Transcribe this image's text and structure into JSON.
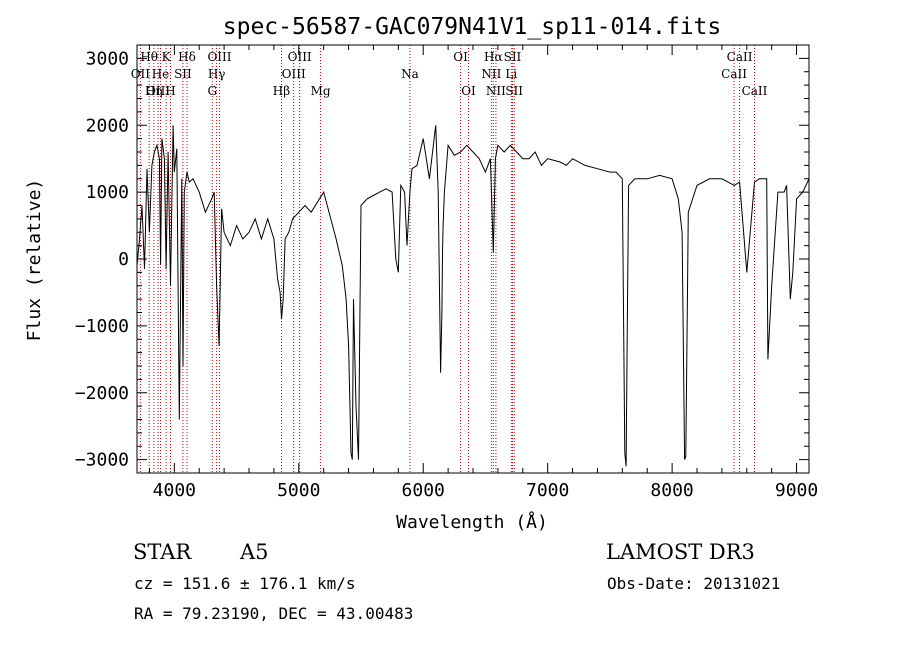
{
  "chart_data": {
    "type": "line",
    "title": "spec-56587-GAC079N41V1_sp11-014.fits",
    "xlabel": "Wavelength (Å)",
    "ylabel": "Flux (relative)",
    "xlim": [
      3700,
      9100
    ],
    "ylim": [
      -3200,
      3200
    ],
    "x_ticks": [
      4000,
      5000,
      6000,
      7000,
      8000,
      9000
    ],
    "y_ticks": [
      -3000,
      -2000,
      -1000,
      0,
      1000,
      2000,
      3000
    ],
    "x_tick_labels": [
      "4000",
      "5000",
      "6000",
      "7000",
      "8000",
      "9000"
    ],
    "y_tick_labels": [
      "−3000",
      "−2000",
      "−1000",
      "0",
      "1000",
      "2000",
      "3000"
    ],
    "line_color": "#000000",
    "marker_color": "#cc0000",
    "lines": [
      {
        "label": "Hθ",
        "wave": 3798,
        "row": 0
      },
      {
        "label": "OII",
        "wave": 3727,
        "row": 1
      },
      {
        "label": "OIII",
        "wave": 3869,
        "row": 2
      },
      {
        "label": "He",
        "wave": 3889,
        "row": 1
      },
      {
        "label": "Hη",
        "wave": 3835,
        "row": 2
      },
      {
        "label": "K",
        "wave": 3934,
        "row": 0
      },
      {
        "label": "SII",
        "wave": 4069,
        "row": 1
      },
      {
        "label": "H",
        "wave": 3969,
        "row": 2
      },
      {
        "label": "Hδ",
        "wave": 4102,
        "row": 0
      },
      {
        "label": "OIII",
        "wave": 4363,
        "row": 0
      },
      {
        "label": "Hγ",
        "wave": 4340,
        "row": 1
      },
      {
        "label": "G",
        "wave": 4305,
        "row": 2
      },
      {
        "label": "OIII",
        "wave": 5007,
        "row": 0
      },
      {
        "label": "OIII",
        "wave": 4959,
        "row": 1
      },
      {
        "label": "Hβ",
        "wave": 4861,
        "row": 2
      },
      {
        "label": "Mg",
        "wave": 5175,
        "row": 2
      },
      {
        "label": "Na",
        "wave": 5893,
        "row": 1
      },
      {
        "label": "OI",
        "wave": 6300,
        "row": 0
      },
      {
        "label": "OI",
        "wave": 6364,
        "row": 2
      },
      {
        "label": "Hα",
        "wave": 6563,
        "row": 0
      },
      {
        "label": "SII",
        "wave": 6717,
        "row": 0
      },
      {
        "label": "NII",
        "wave": 6548,
        "row": 1
      },
      {
        "label": "Li",
        "wave": 6708,
        "row": 1
      },
      {
        "label": "NII",
        "wave": 6584,
        "row": 2
      },
      {
        "label": "SII",
        "wave": 6731,
        "row": 2
      },
      {
        "label": "CaII",
        "wave": 8542,
        "row": 0
      },
      {
        "label": "CaII",
        "wave": 8498,
        "row": 1
      },
      {
        "label": "CaII",
        "wave": 8662,
        "row": 2
      }
    ],
    "spectrum": {
      "x": [
        3700,
        3720,
        3740,
        3760,
        3780,
        3800,
        3820,
        3840,
        3860,
        3880,
        3890,
        3900,
        3920,
        3934,
        3950,
        3969,
        3990,
        4000,
        4020,
        4040,
        4060,
        4070,
        4080,
        4102,
        4120,
        4150,
        4200,
        4250,
        4300,
        4320,
        4340,
        4360,
        4380,
        4400,
        4450,
        4500,
        4550,
        4600,
        4650,
        4700,
        4750,
        4800,
        4830,
        4850,
        4861,
        4875,
        4890,
        4920,
        4950,
        5000,
        5050,
        5100,
        5150,
        5200,
        5250,
        5300,
        5350,
        5380,
        5400,
        5420,
        5430,
        5440,
        5460,
        5480,
        5500,
        5550,
        5600,
        5650,
        5700,
        5750,
        5780,
        5800,
        5820,
        5850,
        5870,
        5893,
        5910,
        5950,
        6000,
        6050,
        6100,
        6120,
        6140,
        6150,
        6155,
        6160,
        6170,
        6200,
        6250,
        6300,
        6350,
        6400,
        6450,
        6500,
        6540,
        6563,
        6580,
        6600,
        6650,
        6700,
        6750,
        6800,
        6850,
        6900,
        6950,
        7000,
        7100,
        7150,
        7200,
        7300,
        7400,
        7500,
        7550,
        7600,
        7620,
        7630,
        7640,
        7650,
        7700,
        7800,
        7900,
        8000,
        8050,
        8080,
        8100,
        8110,
        8130,
        8200,
        8300,
        8400,
        8500,
        8542,
        8600,
        8662,
        8700,
        8760,
        8770,
        8800,
        8850,
        8900,
        8920,
        8950,
        8970,
        9000,
        9050,
        9100
      ],
      "y": [
        -100,
        300,
        800,
        -150,
        1350,
        400,
        1400,
        1600,
        1700,
        1500,
        -80,
        1800,
        1500,
        -150,
        1600,
        -400,
        2000,
        1300,
        1650,
        -2400,
        1200,
        -1600,
        1000,
        1300,
        1150,
        1200,
        1000,
        700,
        900,
        1000,
        -400,
        -1300,
        750,
        400,
        200,
        500,
        300,
        400,
        600,
        300,
        600,
        300,
        -300,
        -500,
        -900,
        -600,
        300,
        400,
        600,
        700,
        800,
        700,
        850,
        1000,
        650,
        300,
        -100,
        -600,
        -1300,
        -2900,
        -3000,
        -600,
        -2200,
        -3000,
        800,
        900,
        950,
        1000,
        1050,
        1000,
        0,
        -200,
        1100,
        1000,
        200,
        1000,
        1350,
        1400,
        1800,
        1200,
        2000,
        1000,
        -1700,
        -800,
        100,
        500,
        1000,
        1700,
        1550,
        1600,
        1700,
        1600,
        1500,
        1300,
        1500,
        100,
        1500,
        1700,
        1600,
        1700,
        1600,
        1500,
        1500,
        1600,
        1400,
        1500,
        1450,
        1400,
        1500,
        1400,
        1350,
        1300,
        1300,
        1200,
        -2900,
        -3100,
        -1000,
        1100,
        1200,
        1200,
        1250,
        1200,
        900,
        400,
        -3000,
        -2950,
        700,
        1100,
        1200,
        1200,
        1100,
        1150,
        -200,
        1150,
        1200,
        1200,
        -1500,
        -400,
        1000,
        1000,
        1100,
        -600,
        -200,
        900,
        1000,
        1200
      ]
    }
  },
  "info": {
    "object_class": "STAR",
    "subclass": "A5",
    "survey": "LAMOST DR3",
    "cz": "cz = 151.6 ± 176.1 km/s",
    "obs_date": "Obs-Date: 20131021",
    "coords": "RA =  79.23190, DEC =  43.00483"
  }
}
